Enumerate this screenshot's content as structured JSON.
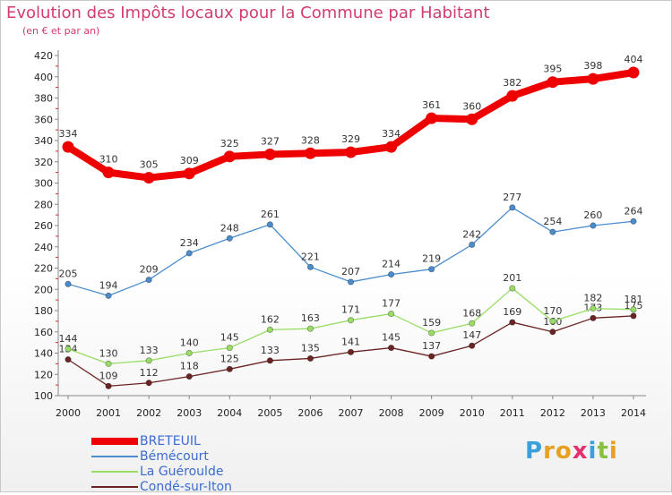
{
  "title": "Evolution des Impôts locaux pour la Commune par Habitant",
  "subtitle": "(en € et par an)",
  "logo_text": "Proxiti",
  "chart_data": {
    "type": "line",
    "x": [
      "2000",
      "2001",
      "2002",
      "2003",
      "2004",
      "2005",
      "2006",
      "2007",
      "2008",
      "2009",
      "2010",
      "2011",
      "2012",
      "2013",
      "2014"
    ],
    "ylim": [
      100,
      420
    ],
    "yticks": [
      100,
      120,
      140,
      160,
      180,
      200,
      220,
      240,
      260,
      280,
      300,
      320,
      340,
      360,
      380,
      400,
      420
    ],
    "grid": false,
    "legend_position": "bottom-left",
    "series": [
      {
        "name": "BRETEUIL",
        "color": "#ee0000",
        "values": [
          334,
          310,
          305,
          309,
          325,
          327,
          328,
          329,
          334,
          361,
          360,
          382,
          395,
          398,
          404
        ]
      },
      {
        "name": "Bémécourt",
        "color": "#4a8ccc",
        "values": [
          205,
          194,
          209,
          234,
          248,
          261,
          221,
          207,
          214,
          219,
          242,
          277,
          254,
          260,
          264
        ]
      },
      {
        "name": "La Guéroulde",
        "color": "#99dd66",
        "values": [
          144,
          130,
          133,
          140,
          145,
          162,
          163,
          171,
          177,
          159,
          168,
          201,
          170,
          182,
          181
        ]
      },
      {
        "name": "Condé-sur-Iton",
        "color": "#6b2424",
        "values": [
          134,
          109,
          112,
          118,
          125,
          133,
          135,
          141,
          145,
          137,
          147,
          169,
          160,
          173,
          175
        ]
      }
    ]
  }
}
